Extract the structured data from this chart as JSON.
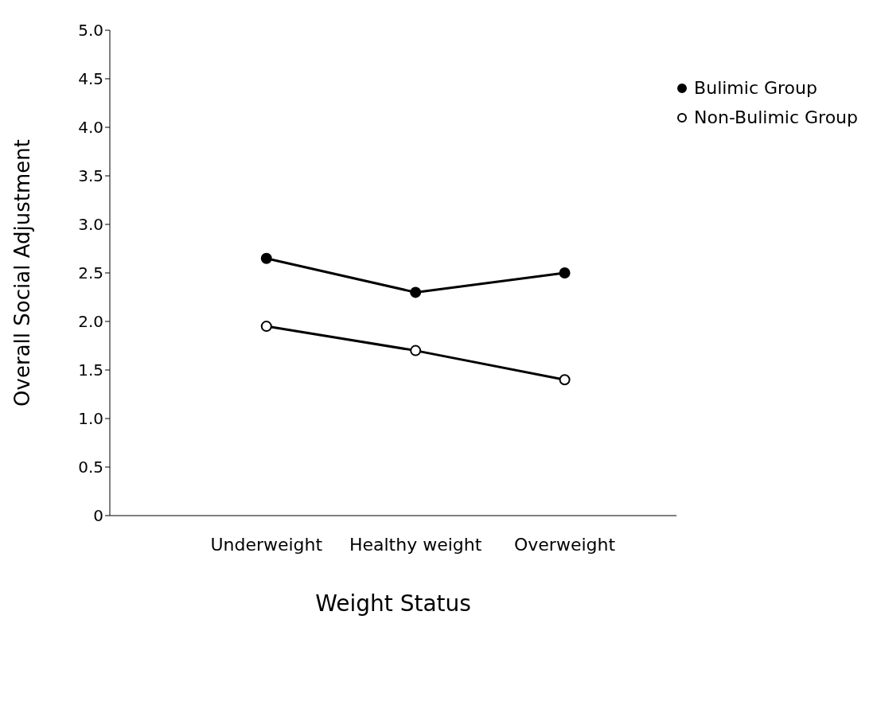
{
  "chart_data": {
    "type": "line",
    "xlabel": "Weight Status",
    "ylabel": "Overall Social Adjustment",
    "categories": [
      "Underweight",
      "Healthy weight",
      "Overweight"
    ],
    "series": [
      {
        "name": "Bulimic Group",
        "color": "#000000",
        "values": [
          2.65,
          2.3,
          2.5
        ]
      },
      {
        "name": "Non-Bulimic Group",
        "color": "#000000",
        "values": [
          1.95,
          1.7,
          1.4
        ]
      }
    ],
    "ylim": [
      0,
      5
    ],
    "yticks": [
      0,
      0.5,
      {
        "value": 1,
        "label": "1.0"
      },
      1.5,
      {
        "value": 2,
        "label": "2.0"
      },
      2.5,
      {
        "value": 3,
        "label": "3.0"
      },
      3.5,
      {
        "value": 4,
        "label": "4.0"
      },
      4.5,
      {
        "value": 5,
        "label": "5.0"
      }
    ],
    "grid": false,
    "legend": "top right",
    "marker": "circle"
  }
}
